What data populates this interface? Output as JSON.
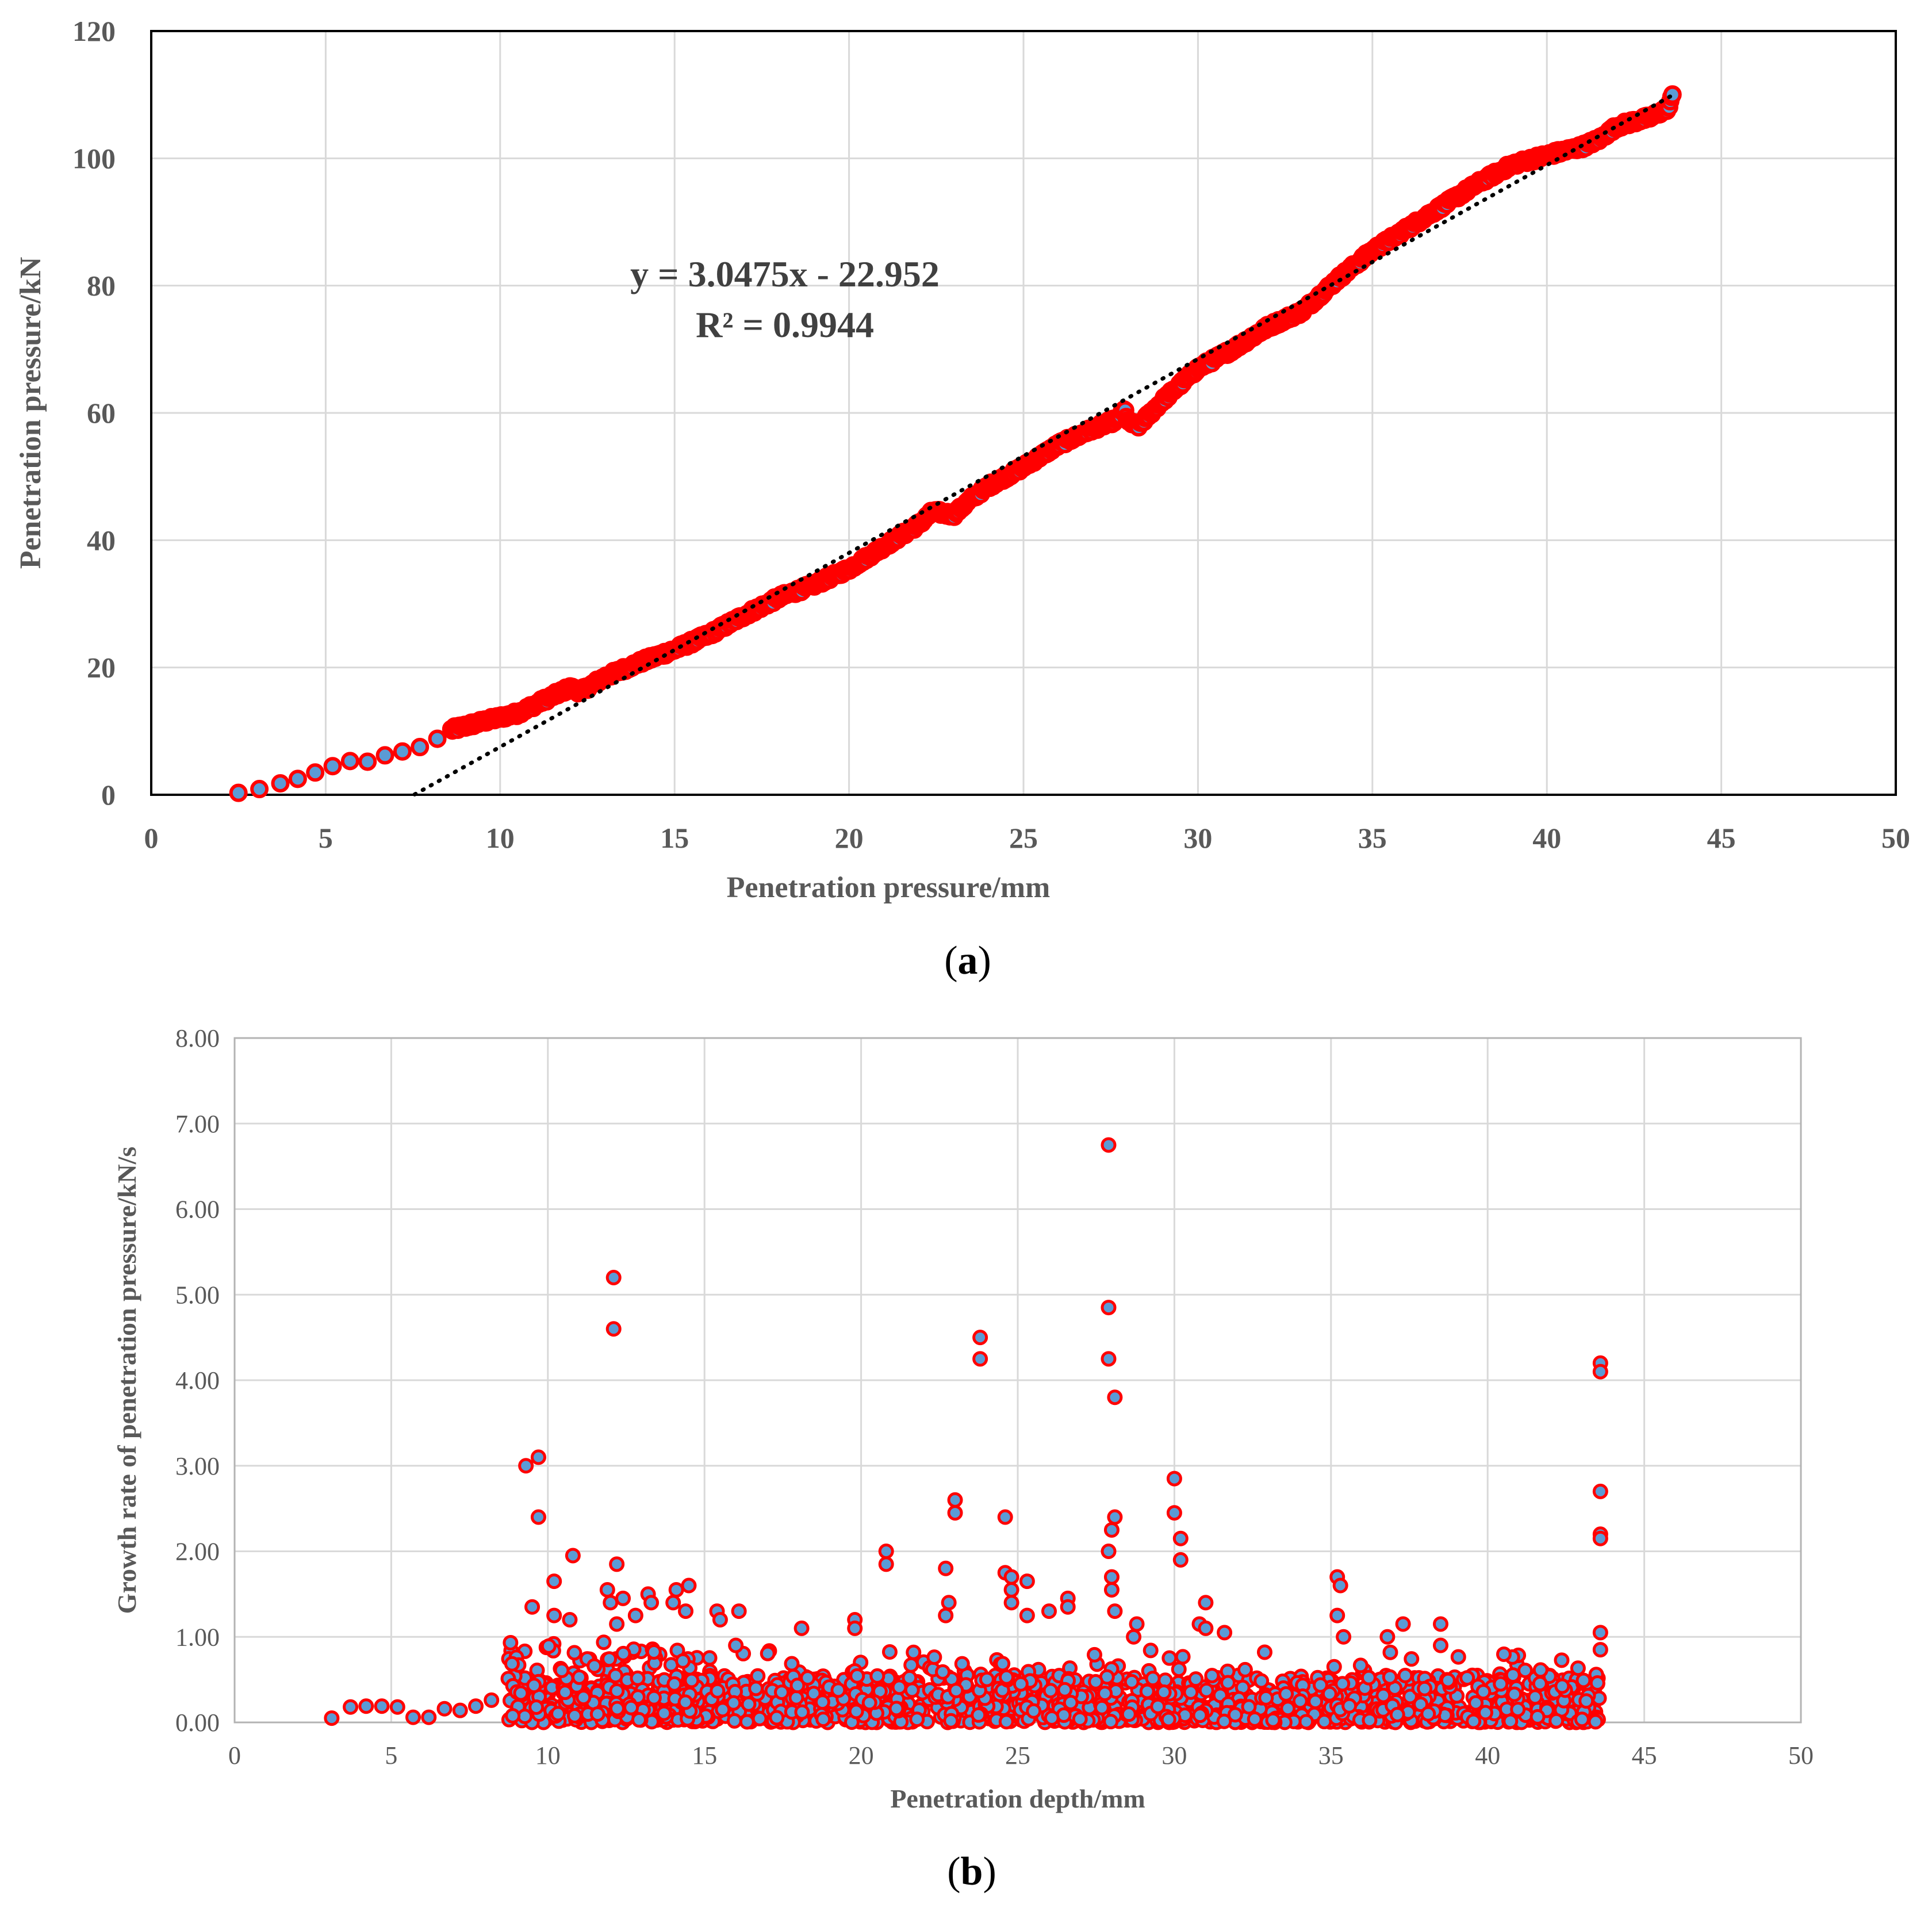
{
  "chart_data": [
    {
      "id": "a",
      "type": "scatter",
      "caption_letter": "a",
      "xlabel": "Penetration pressure/mm",
      "ylabel": "Penetration pressure/kN",
      "xlim": [
        0,
        50
      ],
      "ylim": [
        0,
        120
      ],
      "xticks": [
        "0",
        "5",
        "10",
        "15",
        "20",
        "25",
        "30",
        "35",
        "40",
        "45",
        "50"
      ],
      "yticks": [
        "0",
        "20",
        "40",
        "60",
        "80",
        "100",
        "120"
      ],
      "grid": true,
      "trendline": {
        "type": "linear",
        "slope": 3.0475,
        "intercept": -22.952,
        "x_range": [
          7.55,
          43.6
        ],
        "equation": "y = 3.0475x - 22.952",
        "r2": "R² = 0.9944"
      },
      "series": [
        {
          "name": "Penetration pressure",
          "marker_fill": "#5b9bd5",
          "marker_edge": "#ff0000",
          "profile": [
            [
              2.5,
              0.3
            ],
            [
              3.1,
              0.9
            ],
            [
              3.7,
              1.8
            ],
            [
              4.2,
              2.5
            ],
            [
              4.7,
              3.5
            ],
            [
              5.2,
              4.5
            ],
            [
              5.7,
              5.3
            ],
            [
              6.2,
              5.2
            ],
            [
              6.7,
              6.2
            ],
            [
              7.2,
              6.8
            ],
            [
              7.7,
              7.5
            ],
            [
              8.2,
              8.8
            ],
            [
              8.6,
              10.2
            ],
            [
              9.5,
              11.5
            ],
            [
              10.5,
              12.8
            ],
            [
              11.5,
              15.5
            ],
            [
              12.0,
              16.8
            ],
            [
              12.3,
              16.2
            ],
            [
              13.0,
              18.5
            ],
            [
              14.0,
              20.8
            ],
            [
              15.0,
              22.8
            ],
            [
              16.0,
              25.2
            ],
            [
              17.0,
              28.2
            ],
            [
              18.0,
              31.0
            ],
            [
              19.0,
              33.0
            ],
            [
              20.0,
              35.5
            ],
            [
              21.0,
              39.0
            ],
            [
              22.0,
              42.5
            ],
            [
              22.4,
              44.5
            ],
            [
              23.0,
              44.0
            ],
            [
              23.5,
              46.5
            ],
            [
              24.0,
              48.5
            ],
            [
              25.0,
              51.5
            ],
            [
              26.0,
              55.0
            ],
            [
              27.0,
              57.5
            ],
            [
              27.7,
              59.0
            ],
            [
              27.9,
              60.5
            ],
            [
              28.0,
              58.5
            ],
            [
              28.3,
              58.0
            ],
            [
              29.0,
              62.0
            ],
            [
              30.0,
              67.0
            ],
            [
              31.0,
              70.0
            ],
            [
              32.0,
              73.5
            ],
            [
              33.0,
              76.0
            ],
            [
              34.0,
              81.0
            ],
            [
              35.0,
              85.5
            ],
            [
              36.0,
              89.0
            ],
            [
              37.0,
              92.5
            ],
            [
              38.0,
              96.0
            ],
            [
              39.0,
              99.0
            ],
            [
              40.0,
              100.5
            ],
            [
              41.0,
              101.8
            ],
            [
              41.5,
              103.0
            ],
            [
              42.0,
              105.0
            ],
            [
              42.5,
              105.8
            ],
            [
              43.0,
              106.5
            ],
            [
              43.5,
              108.0
            ],
            [
              43.6,
              110.0
            ]
          ]
        }
      ]
    },
    {
      "id": "b",
      "type": "scatter",
      "caption_letter": "b",
      "xlabel": "Penetration depth/mm",
      "ylabel": "Growth rate of penetration pressure/kN/s",
      "xlim": [
        0,
        50
      ],
      "ylim": [
        0,
        8
      ],
      "xticks": [
        "0",
        "5",
        "10",
        "15",
        "20",
        "25",
        "30",
        "35",
        "40",
        "45",
        "50"
      ],
      "yticks": [
        "0.00",
        "1.00",
        "2.00",
        "3.00",
        "4.00",
        "5.00",
        "6.00",
        "7.00",
        "8.00"
      ],
      "grid": true,
      "series": [
        {
          "name": "Growth rate",
          "marker_fill": "#5b9bd5",
          "marker_edge": "#ff0000",
          "early_points": [
            [
              3.1,
              0.05
            ],
            [
              3.7,
              0.18
            ],
            [
              4.2,
              0.19
            ],
            [
              4.7,
              0.19
            ],
            [
              5.2,
              0.18
            ],
            [
              5.7,
              0.06
            ],
            [
              6.2,
              0.06
            ],
            [
              6.7,
              0.16
            ],
            [
              7.2,
              0.14
            ],
            [
              7.7,
              0.19
            ],
            [
              8.2,
              0.26
            ]
          ],
          "dense_range": {
            "x": [
              8.7,
              43.6
            ],
            "y_max": 0.55,
            "count": 1500
          },
          "outliers": [
            [
              9.3,
              3.0
            ],
            [
              9.7,
              3.1
            ],
            [
              9.5,
              1.35
            ],
            [
              9.7,
              2.4
            ],
            [
              10.8,
              1.95
            ],
            [
              10.2,
              1.65
            ],
            [
              10.2,
              1.25
            ],
            [
              10.7,
              1.2
            ],
            [
              12.1,
              5.2
            ],
            [
              12.1,
              4.6
            ],
            [
              12.2,
              1.85
            ],
            [
              11.9,
              1.55
            ],
            [
              12.4,
              1.45
            ],
            [
              12.0,
              1.4
            ],
            [
              12.2,
              1.15
            ],
            [
              12.8,
              1.25
            ],
            [
              13.2,
              1.5
            ],
            [
              13.3,
              1.4
            ],
            [
              14.1,
              1.55
            ],
            [
              14.0,
              1.4
            ],
            [
              14.5,
              1.6
            ],
            [
              14.4,
              1.3
            ],
            [
              15.4,
              1.3
            ],
            [
              15.5,
              1.2
            ],
            [
              16.1,
              1.3
            ],
            [
              16.0,
              0.9
            ],
            [
              18.1,
              1.1
            ],
            [
              19.8,
              1.2
            ],
            [
              19.8,
              1.1
            ],
            [
              20.8,
              2.0
            ],
            [
              20.8,
              1.85
            ],
            [
              22.7,
              1.8
            ],
            [
              22.8,
              1.4
            ],
            [
              22.7,
              1.25
            ],
            [
              23.0,
              2.6
            ],
            [
              23.0,
              2.45
            ],
            [
              23.8,
              4.5
            ],
            [
              23.8,
              4.25
            ],
            [
              24.6,
              2.4
            ],
            [
              24.6,
              1.75
            ],
            [
              24.8,
              1.7
            ],
            [
              24.8,
              1.55
            ],
            [
              24.8,
              1.4
            ],
            [
              25.3,
              1.65
            ],
            [
              25.3,
              1.25
            ],
            [
              26.0,
              1.3
            ],
            [
              26.6,
              1.45
            ],
            [
              26.6,
              1.35
            ],
            [
              27.9,
              6.75
            ],
            [
              27.9,
              4.85
            ],
            [
              27.9,
              4.25
            ],
            [
              28.1,
              3.8
            ],
            [
              28.0,
              2.25
            ],
            [
              28.1,
              2.4
            ],
            [
              27.9,
              2.0
            ],
            [
              28.0,
              1.7
            ],
            [
              28.0,
              1.55
            ],
            [
              28.1,
              1.3
            ],
            [
              28.8,
              1.15
            ],
            [
              28.7,
              1.0
            ],
            [
              30.0,
              2.85
            ],
            [
              30.0,
              2.45
            ],
            [
              30.2,
              2.15
            ],
            [
              30.2,
              1.9
            ],
            [
              31.0,
              1.4
            ],
            [
              30.8,
              1.15
            ],
            [
              31.0,
              1.1
            ],
            [
              31.6,
              1.05
            ],
            [
              35.2,
              1.7
            ],
            [
              35.3,
              1.6
            ],
            [
              35.2,
              1.25
            ],
            [
              35.4,
              1.0
            ],
            [
              36.8,
              1.0
            ],
            [
              37.3,
              1.15
            ],
            [
              38.5,
              1.15
            ],
            [
              38.5,
              0.9
            ],
            [
              43.6,
              4.2
            ],
            [
              43.6,
              4.1
            ],
            [
              43.6,
              2.7
            ],
            [
              43.6,
              2.2
            ],
            [
              43.6,
              2.15
            ],
            [
              43.6,
              1.05
            ],
            [
              43.6,
              0.85
            ]
          ]
        }
      ]
    }
  ]
}
